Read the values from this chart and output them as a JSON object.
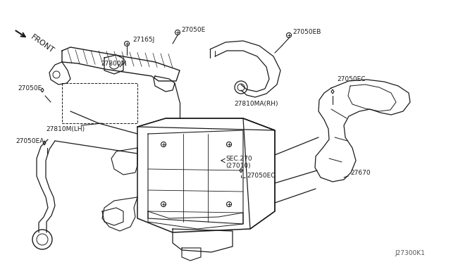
{
  "bg_color": "#ffffff",
  "line_color": "#1a1a1a",
  "title_code": "J27300K1",
  "figsize": [
    6.4,
    3.72
  ],
  "dpi": 100,
  "labels": {
    "front": "FRONT",
    "27165J": "27165J",
    "27800M": "27800M",
    "27050E_top": "27050E",
    "27050EB": "27050EB",
    "27810MA_RH": "27810MA(RH)",
    "27050EC_top": "27050EC",
    "27050E_left": "27050E",
    "27810M_LH": "27810M(LH)",
    "27050EA": "27050EA",
    "SEC270": "SEC.270",
    "27010": "(27010)",
    "27050EC_mid": "27050EC",
    "27670": "27670"
  }
}
